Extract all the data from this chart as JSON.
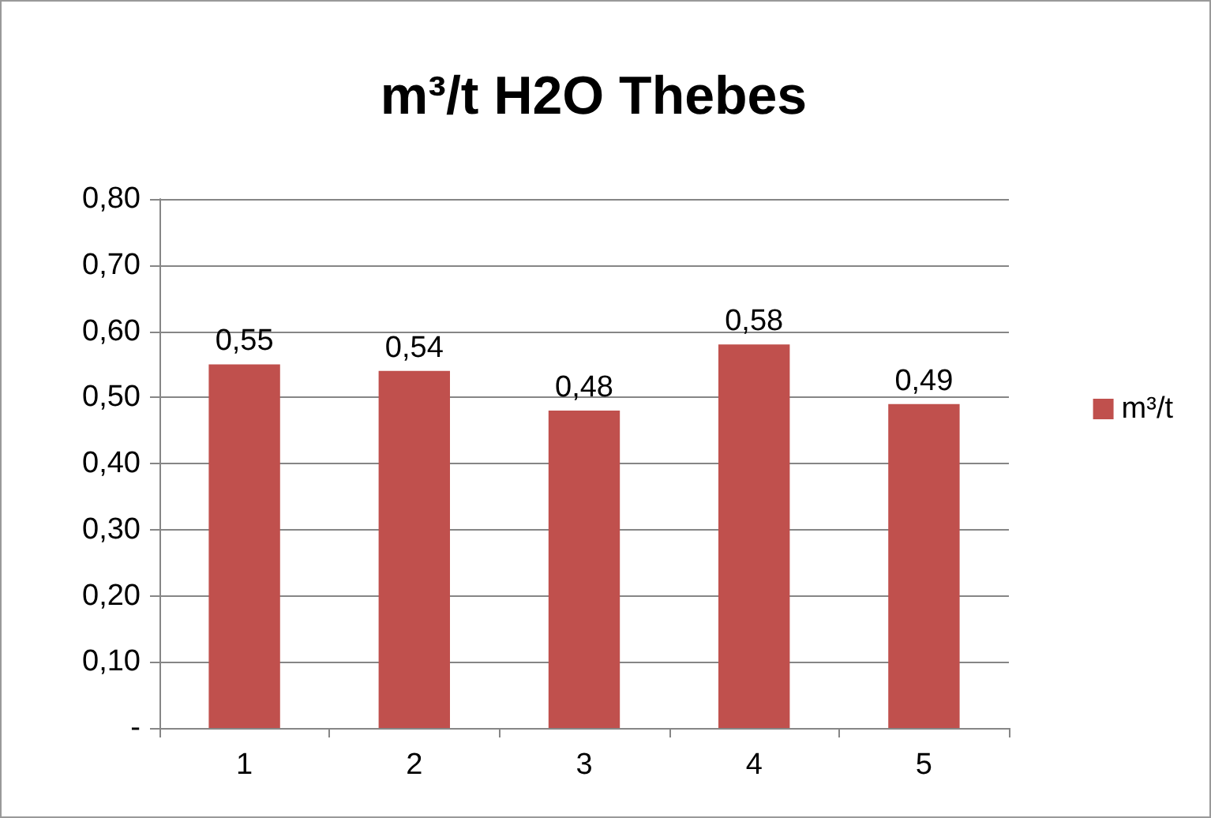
{
  "chart_data": {
    "type": "bar",
    "title": "m³/t H2O Thebes",
    "categories": [
      "1",
      "2",
      "3",
      "4",
      "5"
    ],
    "series": [
      {
        "name": "m³/t",
        "color": "#c0504d",
        "values": [
          0.55,
          0.54,
          0.48,
          0.58,
          0.49
        ],
        "value_labels": [
          "0,55",
          "0,54",
          "0,48",
          "0,58",
          "0,49"
        ]
      }
    ],
    "ylim": [
      0,
      0.8
    ],
    "yticks": [
      {
        "value": 0,
        "label": "-"
      },
      {
        "value": 0.1,
        "label": "0,10"
      },
      {
        "value": 0.2,
        "label": "0,20"
      },
      {
        "value": 0.3,
        "label": "0,30"
      },
      {
        "value": 0.4,
        "label": "0,40"
      },
      {
        "value": 0.5,
        "label": "0,50"
      },
      {
        "value": 0.6,
        "label": "0,60"
      },
      {
        "value": 0.7,
        "label": "0,70"
      },
      {
        "value": 0.8,
        "label": "0,80"
      }
    ],
    "grid": "y",
    "legend": "right"
  }
}
